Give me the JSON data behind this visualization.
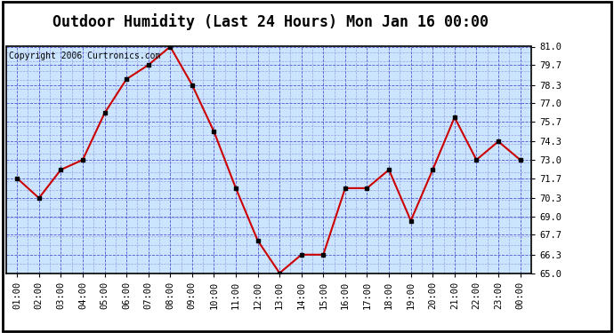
{
  "title": "Outdoor Humidity (Last 24 Hours) Mon Jan 16 00:00",
  "copyright": "Copyright 2006 Curtronics.com",
  "x_labels": [
    "01:00",
    "02:00",
    "03:00",
    "04:00",
    "05:00",
    "06:00",
    "07:00",
    "08:00",
    "09:00",
    "10:00",
    "11:00",
    "12:00",
    "13:00",
    "14:00",
    "15:00",
    "16:00",
    "17:00",
    "18:00",
    "19:00",
    "20:00",
    "21:00",
    "22:00",
    "23:00",
    "00:00"
  ],
  "y_values": [
    71.7,
    70.3,
    72.3,
    73.0,
    76.3,
    78.7,
    79.7,
    81.0,
    78.3,
    75.0,
    71.0,
    67.3,
    65.0,
    66.3,
    66.3,
    71.0,
    71.0,
    72.3,
    68.7,
    72.3,
    76.0,
    73.0,
    74.3,
    73.0
  ],
  "ylim_min": 65.0,
  "ylim_max": 81.0,
  "yticks": [
    65.0,
    66.3,
    67.7,
    69.0,
    70.3,
    71.7,
    73.0,
    74.3,
    75.7,
    77.0,
    78.3,
    79.7,
    81.0
  ],
  "line_color": "#cc0000",
  "marker_color": "#000000",
  "bg_color": "#cce5ff",
  "grid_color_major": "#4444cc",
  "grid_color_minor": "#8888dd",
  "title_fontsize": 12,
  "copyright_fontsize": 7,
  "tick_fontsize": 7.5,
  "outer_bg": "#ffffff",
  "border_color": "#000000"
}
